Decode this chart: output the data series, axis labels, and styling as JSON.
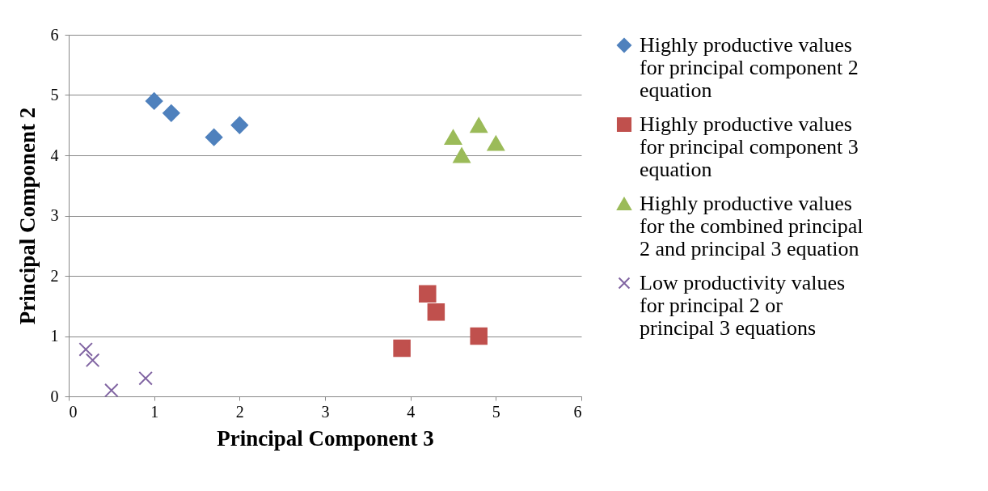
{
  "chart_data": {
    "type": "scatter",
    "xlabel": "Principal Component 3",
    "ylabel": "Principal Component 2",
    "xlim": [
      0,
      6
    ],
    "ylim": [
      0,
      6
    ],
    "xticks": [
      0,
      1,
      2,
      3,
      4,
      5,
      6
    ],
    "yticks": [
      0,
      1,
      2,
      3,
      4,
      5,
      6
    ],
    "grid": "y",
    "legend": "right",
    "series": [
      {
        "name": "Highly productive values for principal component 2 equation",
        "color": "#4f81bd",
        "marker": "diamond",
        "x": [
          1.0,
          1.2,
          1.7,
          2.0
        ],
        "values": [
          4.9,
          4.7,
          4.3,
          4.5
        ]
      },
      {
        "name": "Highly productive values for principal component 3 equation",
        "color": "#c0504d",
        "marker": "square",
        "x": [
          4.2,
          4.3,
          3.9,
          4.8
        ],
        "values": [
          1.7,
          1.4,
          0.8,
          1.0
        ]
      },
      {
        "name": "Highly productive values for the combined principal 2 and principal 3 equation",
        "color": "#9bbb59",
        "marker": "triangle",
        "x": [
          4.5,
          4.8,
          4.6,
          5.0
        ],
        "values": [
          4.3,
          4.5,
          4.0,
          4.2
        ]
      },
      {
        "name": "Low productivity values for principal 2 or principal 3 equations",
        "color": "#8064a2",
        "marker": "cross",
        "x": [
          0.2,
          0.28,
          0.5,
          0.9
        ],
        "values": [
          0.78,
          0.6,
          0.1,
          0.3
        ]
      }
    ]
  }
}
